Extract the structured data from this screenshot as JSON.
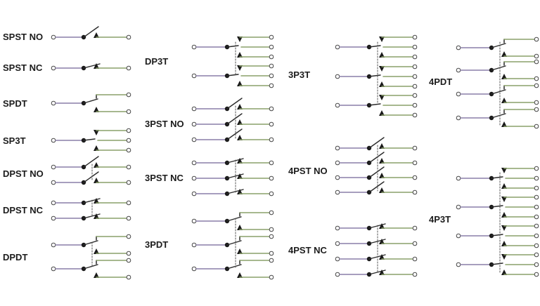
{
  "labels": {
    "spst_no": "SPST NO",
    "spst_nc": "SPST NC",
    "spdt": "SPDT",
    "sp3t": "SP3T",
    "dpst_no": "DPST NO",
    "dpst_nc": "DPST NC",
    "dpdt": "DPDT",
    "dp3t": "DP3T",
    "three_pst_no": "3PST NO",
    "three_pst_nc": "3PST NC",
    "three_pdt": "3PDT",
    "three_p3t": "3P3T",
    "four_pst_no": "4PST NO",
    "four_pst_nc": "4PST NC",
    "four_pdt": "4PDT",
    "four_p3t": "4P3T"
  },
  "colors": {
    "text": "#1c1c1c",
    "wire": "#5a5a5a",
    "pole_wire": "#8a7fa8",
    "throw_wire": "#8aa06a",
    "node": "#1a1a1a",
    "terminal": "#ffffff"
  }
}
